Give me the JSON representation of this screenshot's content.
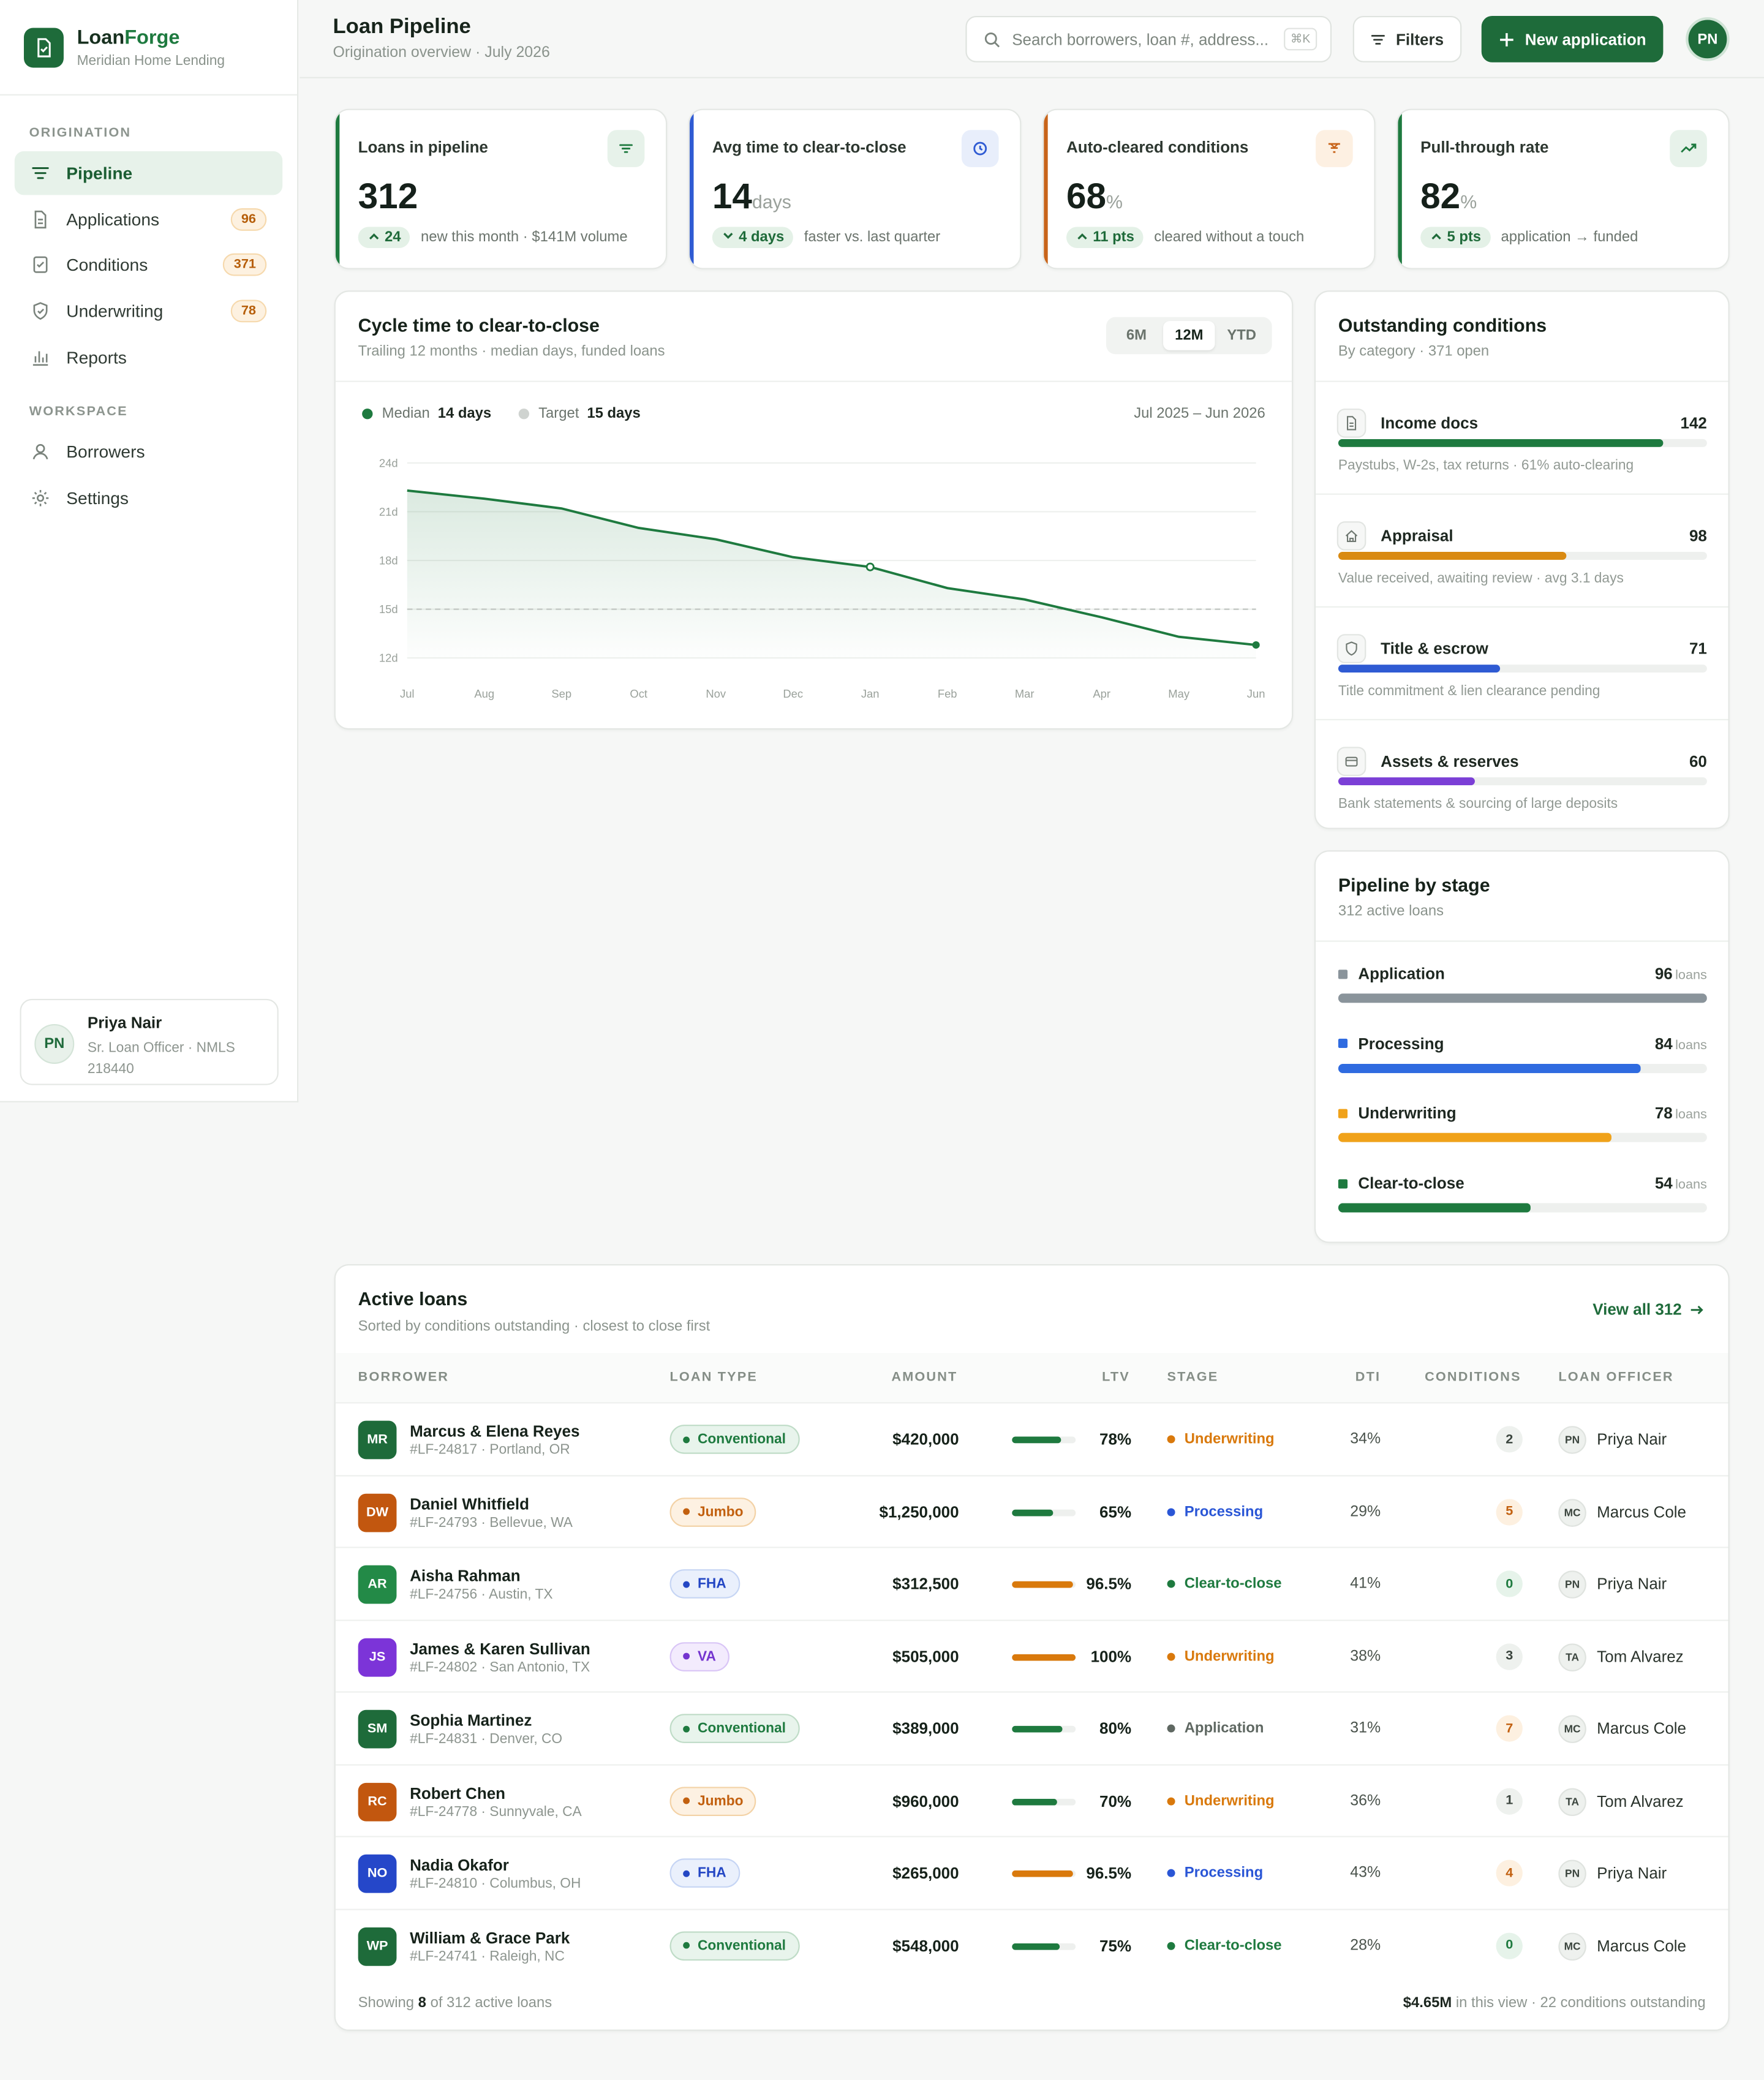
{
  "brand": {
    "name_a": "Loan",
    "name_b": "Forge",
    "sub": "Meridian Home Lending"
  },
  "nav": {
    "section1": "ORIGINATION",
    "section2": "WORKSPACE",
    "items": [
      {
        "label": "Pipeline",
        "badge": ""
      },
      {
        "label": "Applications",
        "badge": "96"
      },
      {
        "label": "Conditions",
        "badge": "371"
      },
      {
        "label": "Underwriting",
        "badge": "78"
      },
      {
        "label": "Reports",
        "badge": ""
      },
      {
        "label": "Borrowers",
        "badge": ""
      },
      {
        "label": "Settings",
        "badge": ""
      }
    ]
  },
  "user": {
    "initials": "PN",
    "name": "Priya Nair",
    "role": "Sr. Loan Officer · NMLS 218440"
  },
  "header": {
    "title": "Loan Pipeline",
    "subtitle": "Origination overview · July 2026",
    "search_placeholder": "Search borrowers, loan #, address...",
    "kbd": "⌘K",
    "filters": "Filters",
    "new_app": "New application",
    "avatar": "PN"
  },
  "stats": [
    {
      "label": "Loans in pipeline",
      "value": "312",
      "unit": "",
      "delta": "24",
      "note": "new this month · $141M volume",
      "color": "#1e7a3f",
      "dir": "up"
    },
    {
      "label": "Avg time to clear-to-close",
      "value": "14",
      "unit": "days",
      "delta": "4 days",
      "note": "faster vs. last quarter",
      "color": "#2f5bd3",
      "dir": "down"
    },
    {
      "label": "Auto-cleared conditions",
      "value": "68",
      "unit": "%",
      "delta": "11 pts",
      "note": "cleared without a touch",
      "color": "#c8641a",
      "dir": "up"
    },
    {
      "label": "Pull-through rate",
      "value": "82",
      "unit": "%",
      "delta": "5 pts",
      "note": "application → funded",
      "color": "#1e7a3f",
      "dir": "up"
    }
  ],
  "cycle": {
    "title": "Cycle time to clear-to-close",
    "subtitle": "Trailing 12 months · median days, funded loans",
    "ranges": [
      "6M",
      "12M",
      "YTD"
    ],
    "active_range": "12M",
    "legend_median": "Median",
    "legend_median_val": "14 days",
    "legend_target": "Target",
    "legend_target_val": "15 days",
    "period": "Jul 2025 – Jun 2026"
  },
  "chart_data": {
    "type": "area",
    "x": [
      "Jul",
      "Aug",
      "Sep",
      "Oct",
      "Nov",
      "Dec",
      "Jan",
      "Feb",
      "Mar",
      "Apr",
      "May",
      "Jun"
    ],
    "series": [
      {
        "name": "Median",
        "values": [
          22.3,
          21.8,
          21.2,
          20.0,
          19.3,
          18.2,
          17.6,
          16.3,
          15.6,
          14.5,
          13.3,
          12.8
        ]
      },
      {
        "name": "Target",
        "values": [
          15,
          15,
          15,
          15,
          15,
          15,
          15,
          15,
          15,
          15,
          15,
          15
        ]
      }
    ],
    "y_ticks": [
      "24d",
      "21d",
      "18d",
      "15d",
      "12d"
    ],
    "ylim": [
      12,
      24
    ],
    "grid": true
  },
  "conditions": {
    "title": "Outstanding conditions",
    "subtitle": "By category · 371 open",
    "items": [
      {
        "name": "Income docs",
        "count": "142",
        "desc": "Paystubs, W-2s, tax returns · 61% auto-clearing",
        "pct": 88,
        "color": "#1e7a3f",
        "icon": "document-icon"
      },
      {
        "name": "Appraisal",
        "count": "98",
        "desc": "Value received, awaiting review · avg 3.1 days",
        "pct": 62,
        "color": "#d98a12",
        "icon": "home-icon"
      },
      {
        "name": "Title & escrow",
        "count": "71",
        "desc": "Title commitment & lien clearance pending",
        "pct": 44,
        "color": "#2f5bd3",
        "icon": "shield-icon"
      },
      {
        "name": "Assets & reserves",
        "count": "60",
        "desc": "Bank statements & sourcing of large deposits",
        "pct": 37,
        "color": "#7b3fd6",
        "icon": "wallet-icon"
      }
    ]
  },
  "stages": {
    "title": "Pipeline by stage",
    "subtitle": "312 active loans",
    "unit": "loans",
    "items": [
      {
        "name": "Application",
        "count": "96",
        "pct": 100,
        "color": "#8a949b"
      },
      {
        "name": "Processing",
        "count": "84",
        "pct": 82,
        "color": "#2f6be0"
      },
      {
        "name": "Underwriting",
        "count": "78",
        "pct": 74,
        "color": "#f0a21a"
      },
      {
        "name": "Clear-to-close",
        "count": "54",
        "pct": 52,
        "color": "#1e7a3f"
      }
    ]
  },
  "loans": {
    "title": "Active loans",
    "subtitle": "Sorted by conditions outstanding · closest to close first",
    "view_all": "View all 312",
    "headers": [
      "BORROWER",
      "LOAN TYPE",
      "AMOUNT",
      "LTV",
      "STAGE",
      "DTI",
      "CONDITIONS",
      "LOAN OFFICER"
    ],
    "rows": [
      {
        "initials": "MR",
        "name": "Marcus & Elena Reyes",
        "sub": "#LF-24817 · Portland, OR",
        "type": "Conventional",
        "amount": "$420,000",
        "ltv": "78%",
        "ltv_pct": 78,
        "stage": "Underwriting",
        "dti": "34%",
        "cond": "2",
        "lo_init": "PN",
        "lo": "Priya Nair",
        "av": "#1e6b3a"
      },
      {
        "initials": "DW",
        "name": "Daniel Whitfield",
        "sub": "#LF-24793 · Bellevue, WA",
        "type": "Jumbo",
        "amount": "$1,250,000",
        "ltv": "65%",
        "ltv_pct": 65,
        "stage": "Processing",
        "dti": "29%",
        "cond": "5",
        "lo_init": "MC",
        "lo": "Marcus Cole",
        "av": "#c2570f"
      },
      {
        "initials": "AR",
        "name": "Aisha Rahman",
        "sub": "#LF-24756 · Austin, TX",
        "type": "FHA",
        "amount": "$312,500",
        "ltv": "96.5%",
        "ltv_pct": 96.5,
        "stage": "Clear-to-close",
        "dti": "41%",
        "cond": "0",
        "lo_init": "PN",
        "lo": "Priya Nair",
        "av": "#238a47"
      },
      {
        "initials": "JS",
        "name": "James & Karen Sullivan",
        "sub": "#LF-24802 · San Antonio, TX",
        "type": "VA",
        "amount": "$505,000",
        "ltv": "100%",
        "ltv_pct": 100,
        "stage": "Underwriting",
        "dti": "38%",
        "cond": "3",
        "lo_init": "TA",
        "lo": "Tom Alvarez",
        "av": "#7c34d8"
      },
      {
        "initials": "SM",
        "name": "Sophia Martinez",
        "sub": "#LF-24831 · Denver, CO",
        "type": "Conventional",
        "amount": "$389,000",
        "ltv": "80%",
        "ltv_pct": 80,
        "stage": "Application",
        "dti": "31%",
        "cond": "7",
        "lo_init": "MC",
        "lo": "Marcus Cole",
        "av": "#1e6b3a"
      },
      {
        "initials": "RC",
        "name": "Robert Chen",
        "sub": "#LF-24778 · Sunnyvale, CA",
        "type": "Jumbo",
        "amount": "$960,000",
        "ltv": "70%",
        "ltv_pct": 70,
        "stage": "Underwriting",
        "dti": "36%",
        "cond": "1",
        "lo_init": "TA",
        "lo": "Tom Alvarez",
        "av": "#c2570f"
      },
      {
        "initials": "NO",
        "name": "Nadia Okafor",
        "sub": "#LF-24810 · Columbus, OH",
        "type": "FHA",
        "amount": "$265,000",
        "ltv": "96.5%",
        "ltv_pct": 96.5,
        "stage": "Processing",
        "dti": "43%",
        "cond": "4",
        "lo_init": "PN",
        "lo": "Priya Nair",
        "av": "#2547c9"
      },
      {
        "initials": "WP",
        "name": "William & Grace Park",
        "sub": "#LF-24741 · Raleigh, NC",
        "type": "Conventional",
        "amount": "$548,000",
        "ltv": "75%",
        "ltv_pct": 75,
        "stage": "Clear-to-close",
        "dti": "28%",
        "cond": "0",
        "lo_init": "MC",
        "lo": "Marcus Cole",
        "av": "#1e6b3a"
      }
    ],
    "footer_a": "Showing",
    "footer_n": "8",
    "footer_b": "of 312 active loans",
    "footer_total": "$4.65M",
    "footer_c": "in this view · 22 conditions outstanding"
  }
}
